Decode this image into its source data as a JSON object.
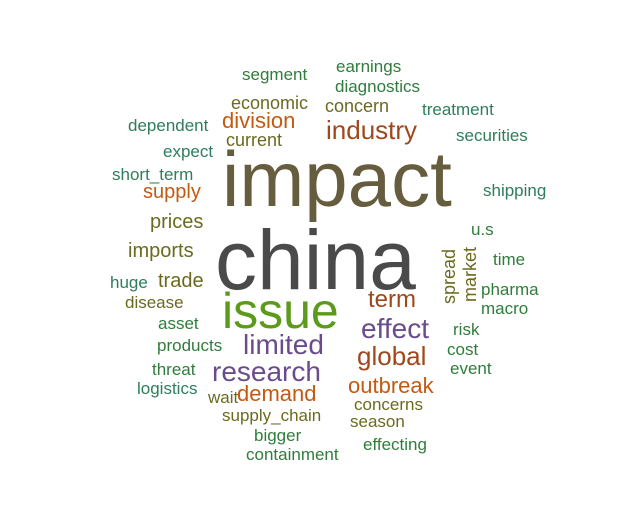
{
  "colors": {
    "olive": "#6b6a1f",
    "green": "#2f7d3b",
    "teal": "#2e7d5b",
    "orange": "#c45a12",
    "purple": "#6a4c8c",
    "gray": "#4a4a4a",
    "brownolive": "#665c3e",
    "lime": "#5b9a1a",
    "rust": "#a0471b"
  },
  "words": [
    {
      "text": "impact"
    },
    {
      "text": "china"
    },
    {
      "text": "issue"
    },
    {
      "text": "industry"
    },
    {
      "text": "effect"
    },
    {
      "text": "global"
    },
    {
      "text": "limited"
    },
    {
      "text": "research"
    },
    {
      "text": "term"
    },
    {
      "text": "division"
    },
    {
      "text": "outbreak"
    },
    {
      "text": "demand"
    },
    {
      "text": "supply"
    },
    {
      "text": "prices"
    },
    {
      "text": "imports"
    },
    {
      "text": "trade"
    },
    {
      "text": "segment"
    },
    {
      "text": "earnings"
    },
    {
      "text": "diagnostics"
    },
    {
      "text": "economic"
    },
    {
      "text": "concern"
    },
    {
      "text": "treatment"
    },
    {
      "text": "dependent"
    },
    {
      "text": "current"
    },
    {
      "text": "securities"
    },
    {
      "text": "expect"
    },
    {
      "text": "short_term"
    },
    {
      "text": "shipping"
    },
    {
      "text": "u.s"
    },
    {
      "text": "time"
    },
    {
      "text": "spread"
    },
    {
      "text": "market"
    },
    {
      "text": "huge"
    },
    {
      "text": "pharma"
    },
    {
      "text": "disease"
    },
    {
      "text": "macro"
    },
    {
      "text": "asset"
    },
    {
      "text": "risk"
    },
    {
      "text": "products"
    },
    {
      "text": "cost"
    },
    {
      "text": "threat"
    },
    {
      "text": "event"
    },
    {
      "text": "logistics"
    },
    {
      "text": "wait"
    },
    {
      "text": "concerns"
    },
    {
      "text": "supply_chain"
    },
    {
      "text": "season"
    },
    {
      "text": "bigger"
    },
    {
      "text": "effecting"
    },
    {
      "text": "containment"
    }
  ]
}
